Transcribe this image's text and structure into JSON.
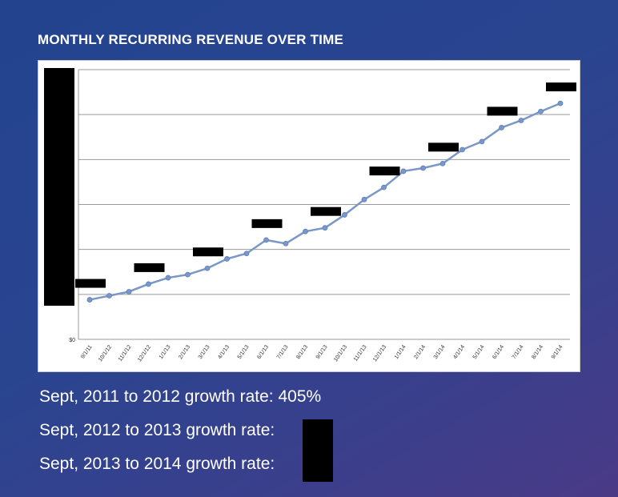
{
  "slide": {
    "title": "MONTHLY RECURRING REVENUE OVER TIME"
  },
  "chart_data": {
    "type": "line",
    "title": "",
    "xlabel": "",
    "ylabel": "",
    "x": [
      "9/1/11",
      "10/1/12",
      "11/1/12",
      "12/1/12",
      "1/1/13",
      "2/1/13",
      "3/1/13",
      "4/1/13",
      "5/1/13",
      "6/1/13",
      "7/1/13",
      "8/1/13",
      "9/1/13",
      "10/1/13",
      "11/1/13",
      "12/1/13",
      "1/1/14",
      "2/1/14",
      "3/1/14",
      "4/1/14",
      "5/1/14",
      "6/1/14",
      "7/1/14",
      "8/1/14",
      "9/1/14"
    ],
    "series": [
      {
        "color": "#7a97c8",
        "values": [
          0.88,
          0.97,
          1.06,
          1.23,
          1.37,
          1.44,
          1.58,
          1.79,
          1.91,
          2.21,
          2.13,
          2.4,
          2.48,
          2.77,
          3.11,
          3.38,
          3.74,
          3.81,
          3.91,
          4.22,
          4.4,
          4.71,
          4.87,
          5.07,
          5.25
        ]
      }
    ],
    "y_tick_labels": [
      "$0",
      "",
      "",
      "",
      "",
      "",
      ""
    ],
    "y_tick_values": [
      0,
      1,
      2,
      3,
      4,
      5,
      6
    ],
    "ylim": [
      0,
      6
    ],
    "grid": true,
    "legend": "none",
    "redacted_data_label_indices": [
      0,
      3,
      6,
      9,
      12,
      15,
      18,
      21,
      24
    ]
  },
  "stats": [
    {
      "label": "Sept, 2011 to 2012 growth rate: ",
      "value": "405",
      "suffix": "%"
    },
    {
      "label": "Sept, 2012 to 2013 growth rate: ",
      "value": "",
      "suffix": "%"
    },
    {
      "label": "Sept, 2013 to 2014 growth rate: ",
      "value": "",
      "suffix": "%"
    }
  ]
}
